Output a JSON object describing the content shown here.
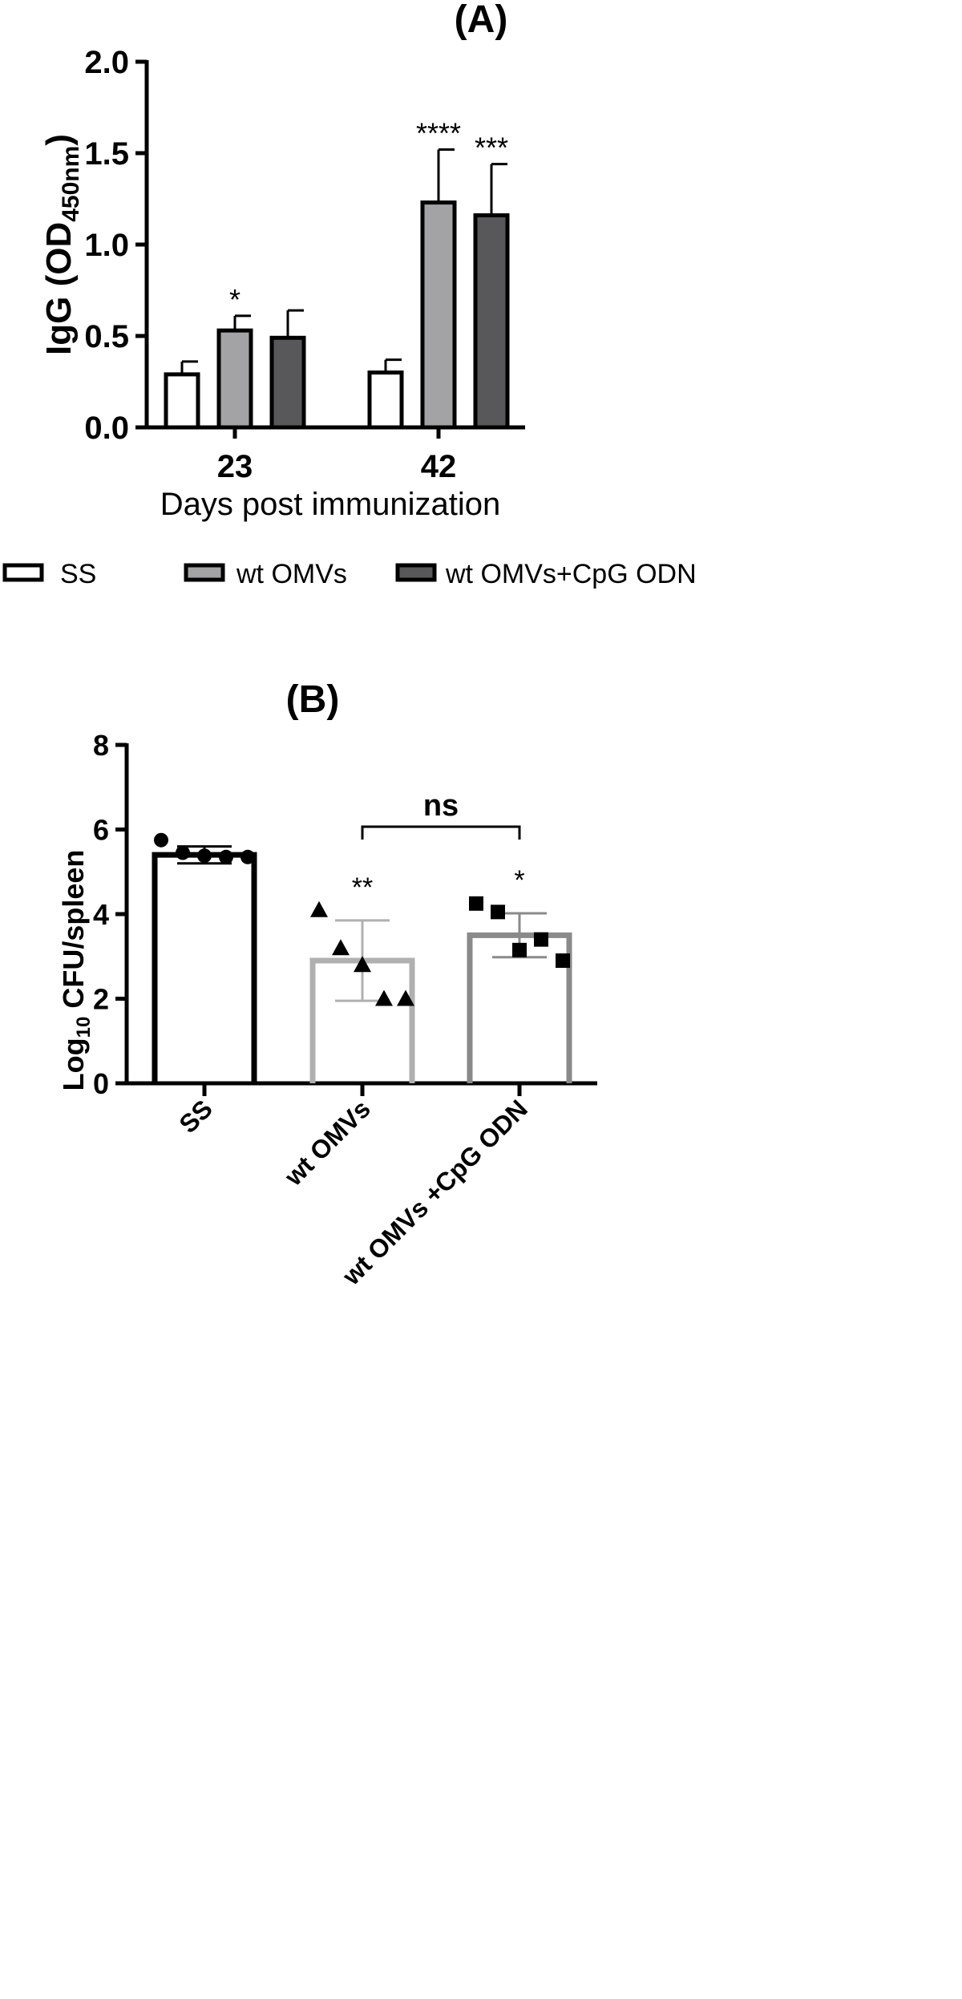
{
  "chart_data": [
    {
      "type": "bar",
      "title": "(A)",
      "xlabel": "Days post immunization",
      "ylabel_main": "IgG (OD",
      "ylabel_sub": "450nm",
      "ylabel_tail": ")",
      "categories": [
        "23",
        "42"
      ],
      "ylim": [
        0,
        2.0
      ],
      "yticks": [
        "0.0",
        "0.5",
        "1.0",
        "1.5",
        "2.0"
      ],
      "series": [
        {
          "name": "SS",
          "values": [
            0.29,
            0.3
          ],
          "errors": [
            0.07,
            0.07
          ],
          "sig": [
            "",
            ""
          ],
          "color": "#ffffff"
        },
        {
          "name": "wt OMVs",
          "values": [
            0.53,
            1.23
          ],
          "errors": [
            0.08,
            0.29
          ],
          "sig": [
            "*",
            "****"
          ],
          "color": "#a3a3a6"
        },
        {
          "name": "wt OMVs+CpG ODN",
          "values": [
            0.49,
            1.16
          ],
          "errors": [
            0.15,
            0.28
          ],
          "sig": [
            "",
            "***"
          ],
          "color": "#58585a"
        }
      ],
      "legend": "bottom"
    },
    {
      "type": "bar",
      "title": "(B)",
      "ylabel_main": "Log",
      "ylabel_sub": "10",
      "ylabel_tail": " CFU/spleen",
      "ylim": [
        0,
        8
      ],
      "yticks": [
        "0",
        "2",
        "4",
        "6",
        "8"
      ],
      "categories": [
        "SS",
        "wt OMVs",
        "wt OMVs +CpG ODN"
      ],
      "values": [
        5.4,
        2.9,
        3.5
      ],
      "errors": [
        0.2,
        0.95,
        0.52
      ],
      "sig": [
        "",
        "**",
        "*"
      ],
      "bar_colors": [
        "#000000",
        "#b0b0b0",
        "#8a8a8a"
      ],
      "points": [
        [
          5.75,
          5.45,
          5.38,
          5.35,
          5.35
        ],
        [
          4.1,
          3.2,
          2.8,
          2.0,
          2.0
        ],
        [
          4.25,
          4.05,
          3.15,
          3.4,
          2.9
        ]
      ],
      "markers": [
        "circle",
        "triangle",
        "square"
      ],
      "comparison": {
        "from": "wt OMVs",
        "to": "wt OMVs +CpG ODN",
        "label": "ns"
      }
    }
  ]
}
